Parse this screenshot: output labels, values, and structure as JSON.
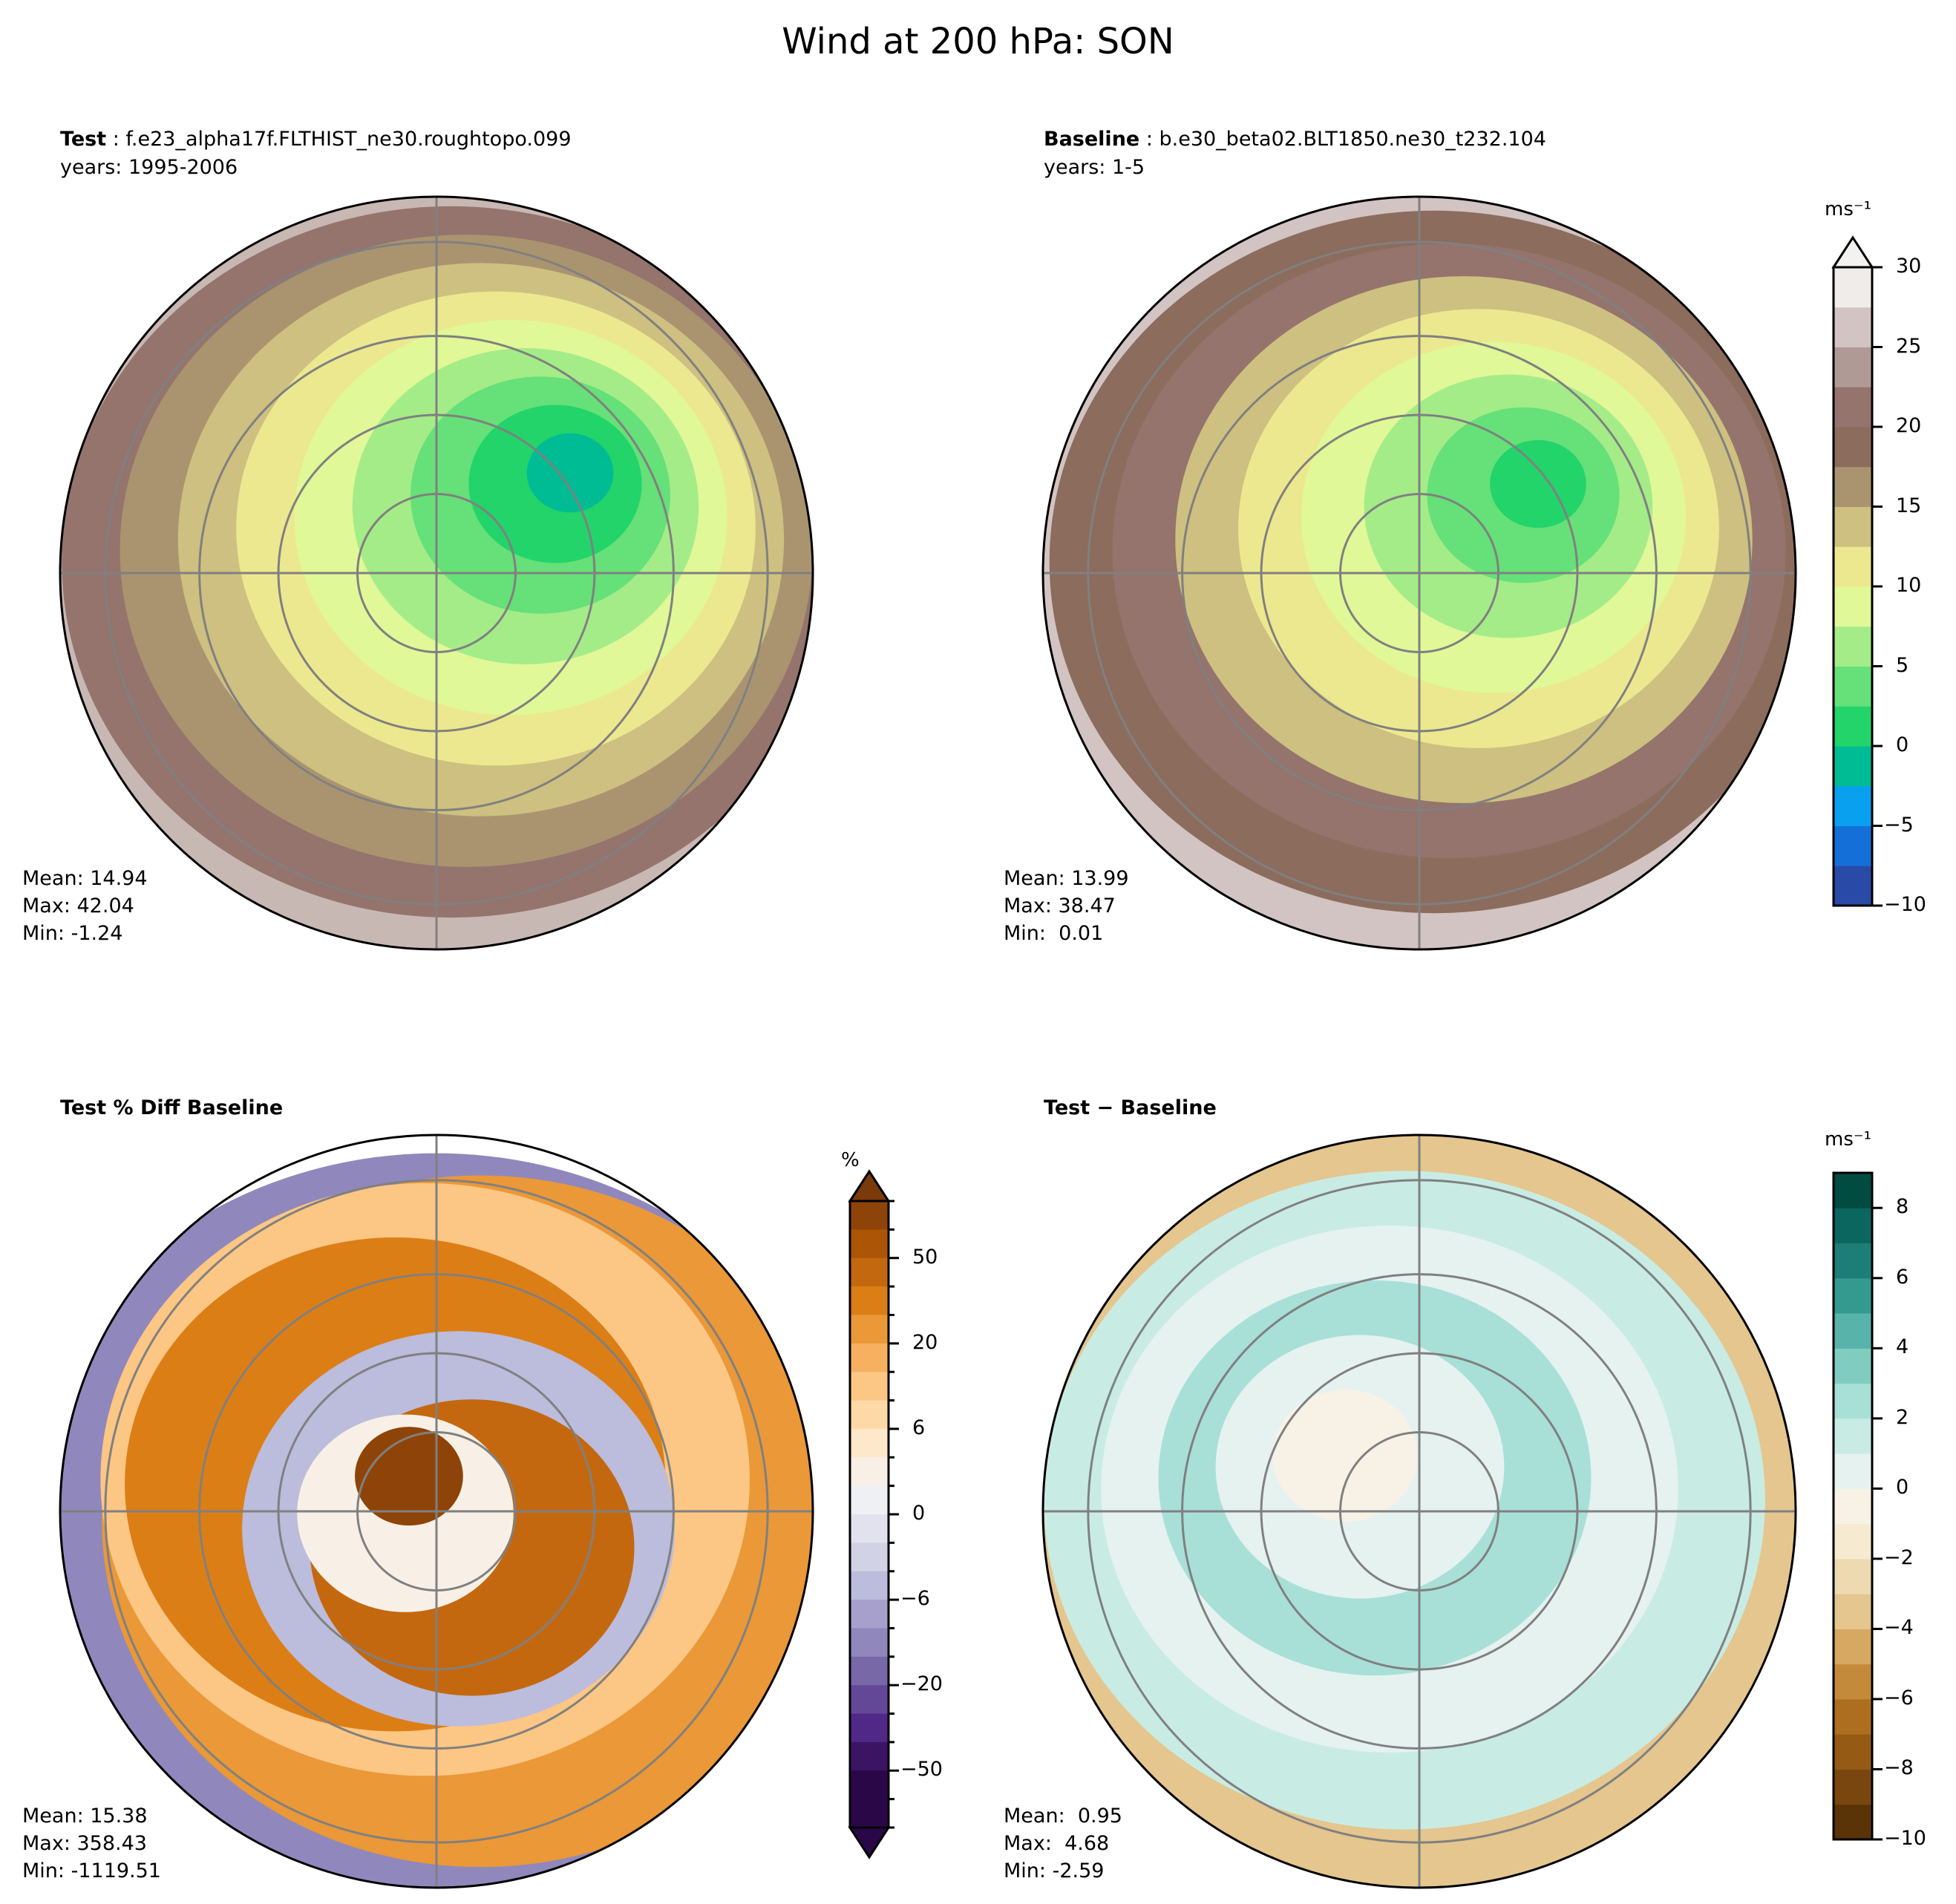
{
  "title": "Wind at 200 hPa: SON",
  "chart_data": [
    {
      "type": "heatmap",
      "projection": "north-polar-stereographic",
      "title_bold": "Test",
      "title_rest": ": f.e23_alpha17f.FLTHIST_ne30.roughtopo.099",
      "subtitle": "years: 1995-2006",
      "stats": {
        "mean": "Mean: 14.94",
        "max": "Max: 42.04",
        "min": "Min: -1.24"
      },
      "field_rings": [
        "#c8b8b4",
        "#94746c",
        "#aa9470",
        "#cec080",
        "#ece890",
        "#e0f898",
        "#a4ec88",
        "#66e078",
        "#22d46a",
        "#00bc94"
      ]
    },
    {
      "type": "heatmap",
      "projection": "north-polar-stereographic",
      "title_bold": "Baseline",
      "title_rest": ": b.e30_beta02.BLT1850.ne30_t232.104",
      "subtitle": "years: 1-5",
      "stats": {
        "mean": "Mean: 13.99",
        "max": "Max: 38.47",
        "min": "Min:  0.01"
      },
      "field_rings": [
        "#d2c4c2",
        "#8c6c5c",
        "#94746c",
        "#cec080",
        "#ece890",
        "#e0f898",
        "#a4ec88",
        "#66e078",
        "#22d46a"
      ],
      "colorbar": {
        "label": "ms⁻¹",
        "range": [
          -10,
          30
        ],
        "extend": "max",
        "ticks": [
          "30",
          "25",
          "20",
          "15",
          "10",
          "5",
          "0",
          "−5",
          "−10"
        ],
        "tick_values": [
          30,
          25,
          20,
          15,
          10,
          5,
          0,
          -5,
          -10
        ],
        "band_colors_bottom_to_top": [
          "#2a4aa8",
          "#1470d8",
          "#0aa0f0",
          "#00bc94",
          "#22d46a",
          "#66e078",
          "#a4ec88",
          "#e0f898",
          "#ece890",
          "#cec080",
          "#aa9470",
          "#8c6c5c",
          "#94746c",
          "#b09a96",
          "#d2c4c2",
          "#f0ecea"
        ]
      }
    },
    {
      "type": "heatmap",
      "projection": "north-polar-stereographic",
      "title_bold": "Test % Diff Baseline",
      "title_rest": "",
      "subtitle": "",
      "stats": {
        "mean": "Mean: 15.38",
        "max": "Max: 358.43",
        "min": "Min: -1119.51"
      },
      "field_rings": [
        "#9088bc",
        "#ea9838",
        "#fcc684",
        "#dc7e16",
        "#bcbcdc",
        "#c46810",
        "#f8f0e6",
        "#8e4408"
      ],
      "colorbar": {
        "label": "%",
        "extend": "both",
        "ticks": [
          "50",
          "20",
          "6",
          "0",
          "−6",
          "−20",
          "−50"
        ],
        "tick_boundary_index_from_top": [
          2,
          5,
          8,
          11,
          14,
          17,
          20
        ],
        "band_colors_top_to_bottom": [
          "#7a3a0a",
          "#8e4408",
          "#ad5506",
          "#c46810",
          "#dc7e16",
          "#ea9838",
          "#f6b060",
          "#fcc684",
          "#fdd9a8",
          "#fde8cc",
          "#f8f0e6",
          "#eef0f3",
          "#e2e2ee",
          "#d2d2e6",
          "#bcbcdc",
          "#a8a0cc",
          "#9088bc",
          "#7868a8",
          "#644898",
          "#502888",
          "#3c1464",
          "#2a0848",
          "#2a0848",
          "#2a0848"
        ]
      }
    },
    {
      "type": "heatmap",
      "projection": "north-polar-stereographic",
      "title_bold": "Test − Baseline",
      "title_rest": "",
      "subtitle": "",
      "stats": {
        "mean": "Mean:  0.95",
        "max": "Max:  4.68",
        "min": "Min: -2.59"
      },
      "field_rings": [
        "#e4c68e",
        "#c8ece4",
        "#e6f2f0",
        "#a8e0d8",
        "#e6f2f0",
        "#f8f2e6"
      ],
      "colorbar": {
        "label": "ms⁻¹",
        "range": [
          -10,
          9
        ],
        "extend": "neither",
        "ticks": [
          "8",
          "6",
          "4",
          "2",
          "0",
          "−2",
          "−4",
          "−6",
          "−8",
          "−10"
        ],
        "tick_values": [
          8,
          6,
          4,
          2,
          0,
          -2,
          -4,
          -6,
          -8,
          -10
        ],
        "band_colors_bottom_to_top": [
          "#5a3406",
          "#7a4610",
          "#955a14",
          "#ad6e20",
          "#c48a3c",
          "#d6a862",
          "#e4c68e",
          "#eedab0",
          "#f6ead0",
          "#f8f2e6",
          "#e6f2f0",
          "#c8ece4",
          "#a8e0d8",
          "#80ccc0",
          "#58b4aa",
          "#349a90",
          "#1c7e76",
          "#0a665e",
          "#004c40"
        ]
      }
    }
  ]
}
